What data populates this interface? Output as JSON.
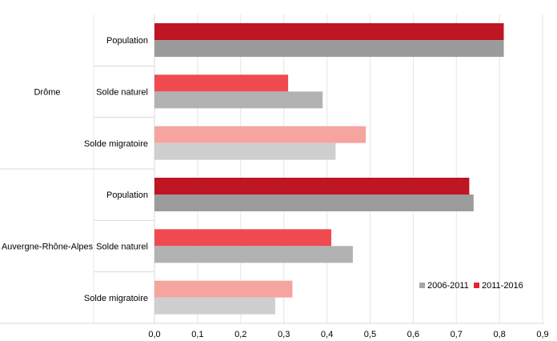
{
  "chart_data": {
    "type": "bar",
    "orientation": "horizontal",
    "title": "",
    "groups": [
      {
        "name": "Drôme",
        "categories": [
          {
            "label": "Population",
            "series": [
              "2011-2016",
              "2006-2011"
            ],
            "values": [
              0.81,
              0.81
            ],
            "colors": [
              "#be1622",
              "#9b9b9b"
            ]
          },
          {
            "label": "Solde naturel",
            "series": [
              "2011-2016",
              "2006-2011"
            ],
            "values": [
              0.31,
              0.39
            ],
            "colors": [
              "#ef4a4f",
              "#b2b2b2"
            ]
          },
          {
            "label": "Solde migratoire",
            "series": [
              "2011-2016",
              "2006-2011"
            ],
            "values": [
              0.49,
              0.42
            ],
            "colors": [
              "#f5a49f",
              "#cfcfcf"
            ]
          }
        ]
      },
      {
        "name": "Auvergne-Rhône-Alpes",
        "categories": [
          {
            "label": "Population",
            "series": [
              "2011-2016",
              "2006-2011"
            ],
            "values": [
              0.73,
              0.74
            ],
            "colors": [
              "#be1622",
              "#9b9b9b"
            ]
          },
          {
            "label": "Solde naturel",
            "series": [
              "2011-2016",
              "2006-2011"
            ],
            "values": [
              0.41,
              0.46
            ],
            "colors": [
              "#ef4a4f",
              "#b2b2b2"
            ]
          },
          {
            "label": "Solde migratoire",
            "series": [
              "2011-2016",
              "2006-2011"
            ],
            "values": [
              0.32,
              0.28
            ],
            "colors": [
              "#f5a49f",
              "#cfcfcf"
            ]
          }
        ]
      }
    ],
    "xlim": [
      0,
      0.9
    ],
    "xticks": [
      "0,0",
      "0,1",
      "0,2",
      "0,3",
      "0,4",
      "0,5",
      "0,6",
      "0,7",
      "0,8",
      "0,9"
    ],
    "grid": true,
    "legend": {
      "placement": "bottom-right",
      "items": [
        {
          "label": "2006-2011",
          "color": "#a6a6a6"
        },
        {
          "label": "2011-2016",
          "color": "#e2242c"
        }
      ]
    }
  }
}
